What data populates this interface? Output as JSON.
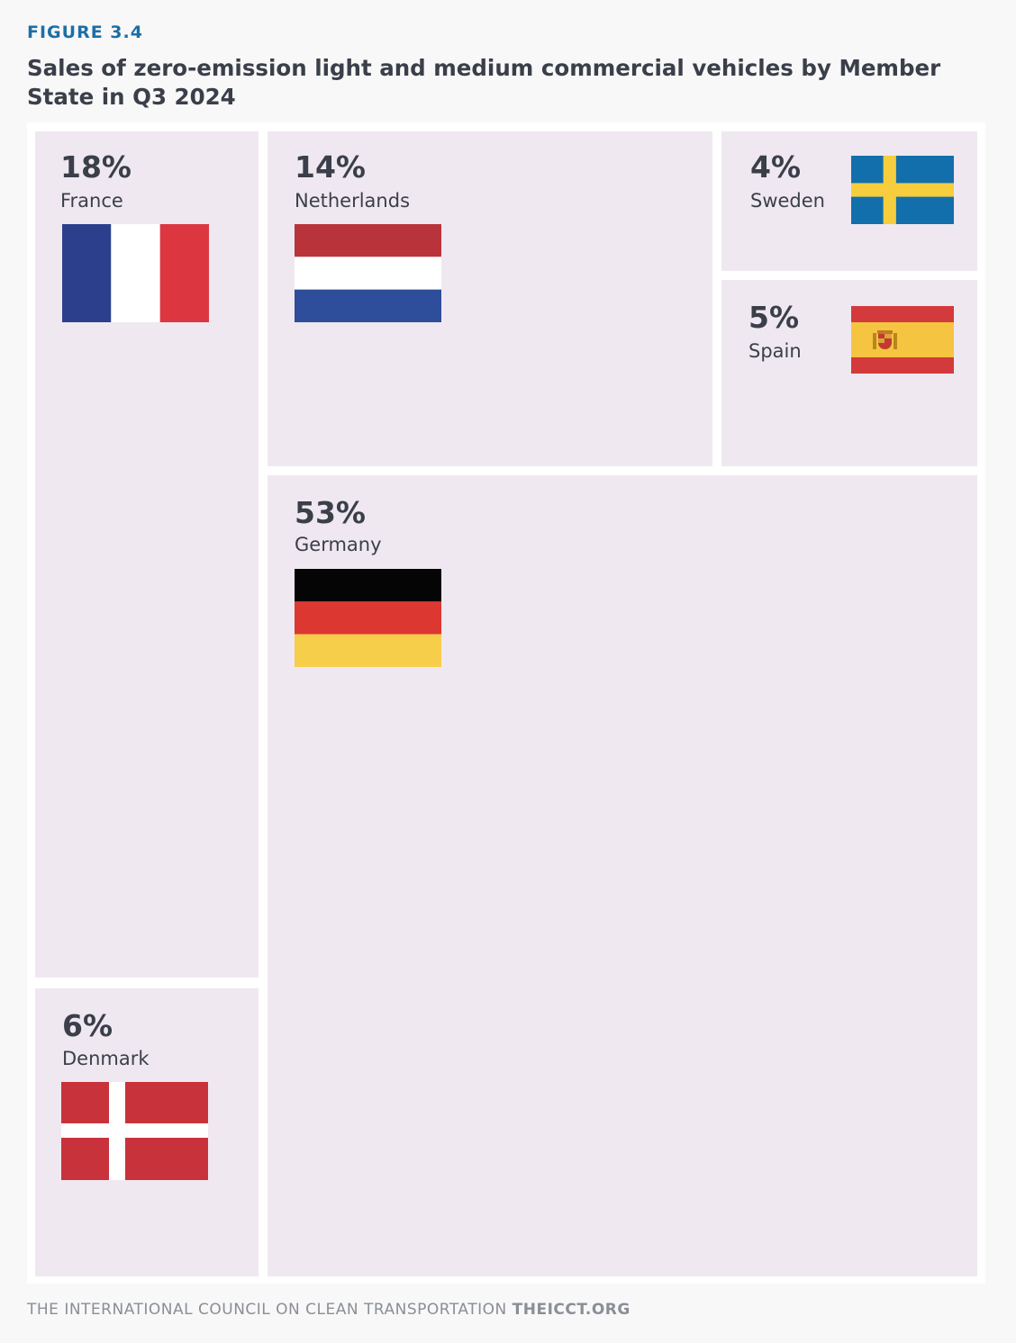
{
  "figure_label": "FIGURE 3.4",
  "title": "Sales of zero-emission light and medium commercial vehicles by Member State in Q3 2024",
  "footer": {
    "org": "THE INTERNATIONAL COUNCIL ON CLEAN TRANSPORTATION",
    "site": "THEICCT.ORG"
  },
  "chart_data": {
    "type": "treemap",
    "title": "Sales of zero-emission light and medium commercial vehicles by Member State in Q3 2024",
    "items": [
      {
        "country": "France",
        "value": 18,
        "label": "18%"
      },
      {
        "country": "Netherlands",
        "value": 14,
        "label": "14%"
      },
      {
        "country": "Sweden",
        "value": 4,
        "label": "4%"
      },
      {
        "country": "Spain",
        "value": 5,
        "label": "5%"
      },
      {
        "country": "Germany",
        "value": 53,
        "label": "53%"
      },
      {
        "country": "Denmark",
        "value": 6,
        "label": "6%"
      }
    ]
  },
  "colors": {
    "tile": "#f0e8f0",
    "text": "#3a3f4a",
    "figure_label": "#1d6fa5"
  }
}
